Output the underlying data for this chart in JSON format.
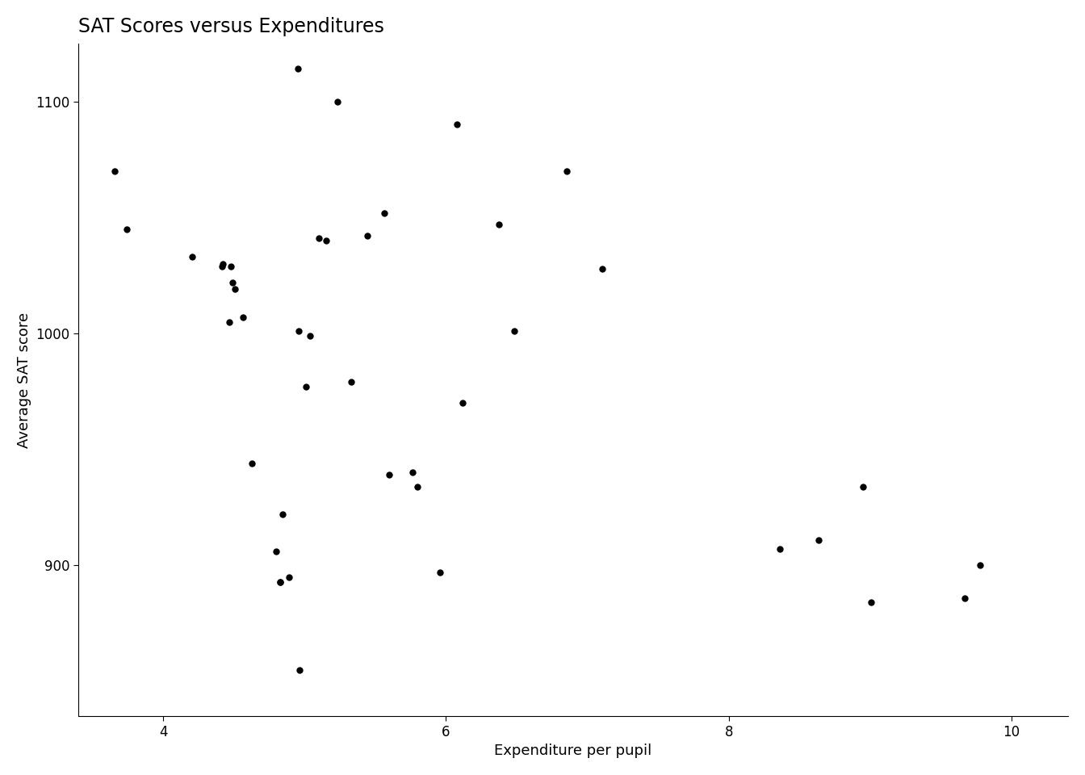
{
  "x": [
    3.656,
    3.741,
    4.202,
    4.418,
    4.423,
    4.469,
    4.48,
    4.488,
    4.508,
    4.564,
    4.627,
    4.797,
    4.826,
    4.826,
    4.845,
    4.887,
    4.952,
    4.956,
    4.963,
    5.008,
    5.036,
    5.099,
    5.154,
    5.231,
    5.327,
    5.445,
    5.562,
    5.596,
    5.765,
    5.8,
    5.955,
    6.079,
    6.116,
    6.372,
    6.483,
    6.853,
    7.106,
    8.361,
    8.636,
    8.95,
    9.005,
    9.671,
    9.774
  ],
  "y": [
    1070,
    1045,
    1033,
    1029,
    1030,
    1005,
    1029,
    1022,
    1019,
    1007,
    944,
    906,
    893,
    893,
    922,
    895,
    1114,
    1001,
    855,
    977,
    999,
    1041,
    1040,
    1100,
    979,
    1042,
    1052,
    939,
    940,
    934,
    897,
    1090,
    970,
    1047,
    1001,
    1070,
    1028,
    907,
    911,
    934,
    884,
    886,
    900
  ],
  "title": "SAT Scores versus Expenditures",
  "xlabel": "Expenditure per pupil",
  "ylabel": "Average SAT score",
  "xlim": [
    3.4,
    10.4
  ],
  "ylim": [
    835,
    1125
  ],
  "xticks": [
    4,
    6,
    8,
    10
  ],
  "yticks": [
    900,
    1000,
    1100
  ],
  "dot_color": "#000000",
  "dot_size": 25,
  "background_color": "#ffffff",
  "title_fontsize": 17,
  "label_fontsize": 13,
  "tick_fontsize": 12
}
